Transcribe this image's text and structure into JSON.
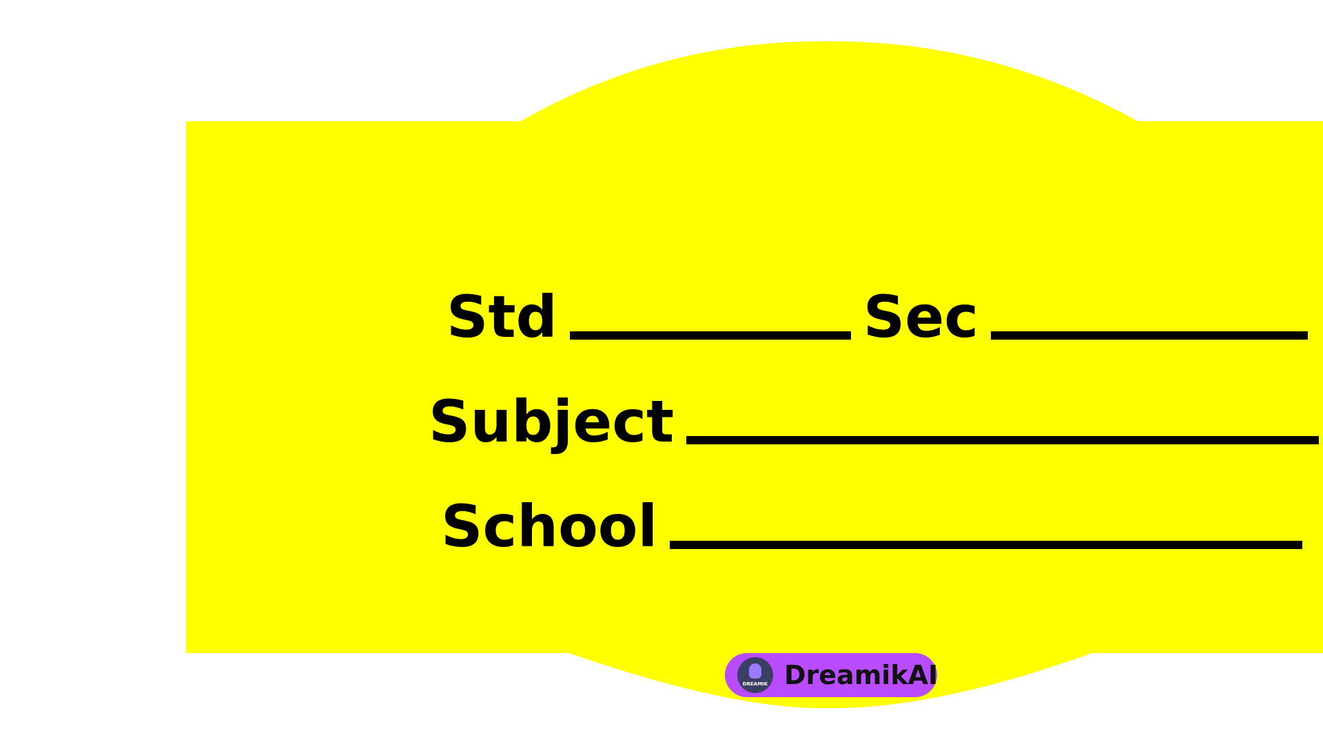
{
  "label": {
    "background_color": "#ffff00",
    "text_color": "#000000",
    "fields": {
      "std": "Std",
      "sec": "Sec",
      "subject": "Subject",
      "school": "School"
    }
  },
  "watermark": {
    "logo_text": "DREAMIK",
    "name": "DreamikAI",
    "pill_color": "#b94cff",
    "icon": "dreamik-logo-icon"
  }
}
